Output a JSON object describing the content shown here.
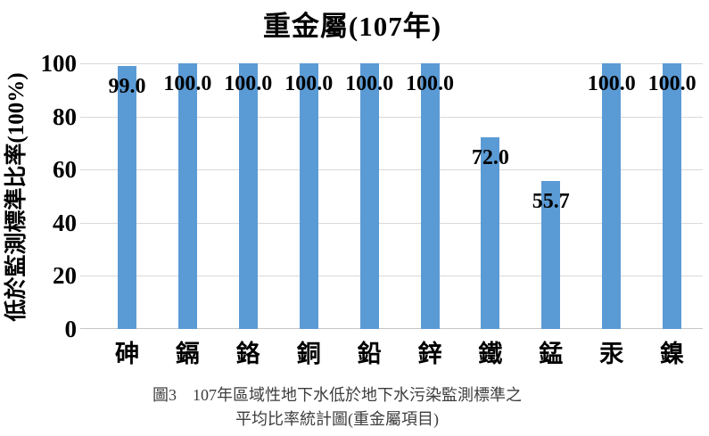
{
  "figure": {
    "caption_line1": "圖3　107年區域性地下水低於地下水污染監測標準之",
    "caption_line2": "平均比率統計圖(重金屬項目)"
  },
  "chart_data": {
    "type": "bar",
    "title": "重金屬(107年)",
    "ylabel": "低於監測標準比率(100%)",
    "xlabel": "",
    "categories": [
      "砷",
      "鎘",
      "鉻",
      "銅",
      "鉛",
      "鋅",
      "鐵",
      "錳",
      "汞",
      "鎳"
    ],
    "values": [
      99.0,
      100.0,
      100.0,
      100.0,
      100.0,
      100.0,
      72.0,
      55.7,
      100.0,
      100.0
    ],
    "value_labels": [
      "99.0",
      "100.0",
      "100.0",
      "100.0",
      "100.0",
      "100.0",
      "72.0",
      "55.7",
      "100.0",
      "100.0"
    ],
    "yticks": [
      0,
      20,
      40,
      60,
      80,
      100
    ],
    "ytick_labels": [
      "0",
      "20",
      "40",
      "60",
      "80",
      "100"
    ],
    "ylim": [
      0,
      100
    ],
    "grid": true,
    "legend_position": "none",
    "value_label_position": "inside-end",
    "bar_color": "#5B9BD5",
    "gridline_color": "#D9D9D9",
    "axis_line_color": "#C6C6C6",
    "text_color": "#000000",
    "caption_color": "#3D3D3D"
  }
}
